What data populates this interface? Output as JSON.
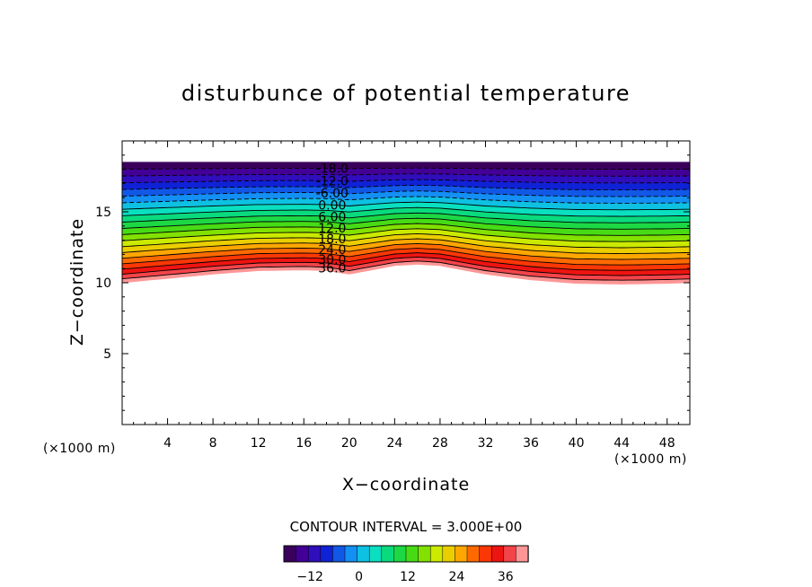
{
  "chart_data": {
    "type": "contour",
    "title": "disturbunce of potential temperature",
    "xlabel": "X−coordinate",
    "ylabel": "Z−coordinate",
    "x_unit": "(×1000 m)",
    "y_unit": "(×1000 m)",
    "xlim": [
      0,
      50
    ],
    "ylim": [
      0,
      20
    ],
    "xticks": [
      4,
      8,
      12,
      16,
      20,
      24,
      28,
      32,
      36,
      40,
      44,
      48
    ],
    "yticks": [
      5,
      10,
      15
    ],
    "contour_interval_label": "CONTOUR INTERVAL = 3.000E+00",
    "contour_interval": 3,
    "levels_min": -18,
    "levels_max": 39,
    "contour_labels": [
      "-18.0",
      "-12.0",
      "-6.00",
      "0.00",
      "6.00",
      "12.0",
      "18.0",
      "24.0",
      "30.0",
      "36.0"
    ],
    "negative_contours": "dashed",
    "colorbar_ticks": [
      "−12",
      "0",
      "12",
      "24",
      "36"
    ],
    "colorbar_values": [
      -12,
      0,
      12,
      24,
      36
    ],
    "layer_top": 18.5,
    "layer_bottom_profile": {
      "x": [
        0,
        4,
        8,
        12,
        16,
        18,
        20,
        22,
        24,
        26,
        28,
        30,
        32,
        36,
        40,
        44,
        48,
        50
      ],
      "z": [
        10.0,
        10.3,
        10.6,
        10.85,
        10.9,
        10.85,
        10.6,
        10.9,
        11.2,
        11.3,
        11.2,
        10.9,
        10.6,
        10.2,
        9.95,
        9.9,
        9.95,
        10.0
      ]
    },
    "grid": false,
    "colormap": "rainbow (violet → blue → cyan → green → yellow → orange → red → pink)"
  }
}
